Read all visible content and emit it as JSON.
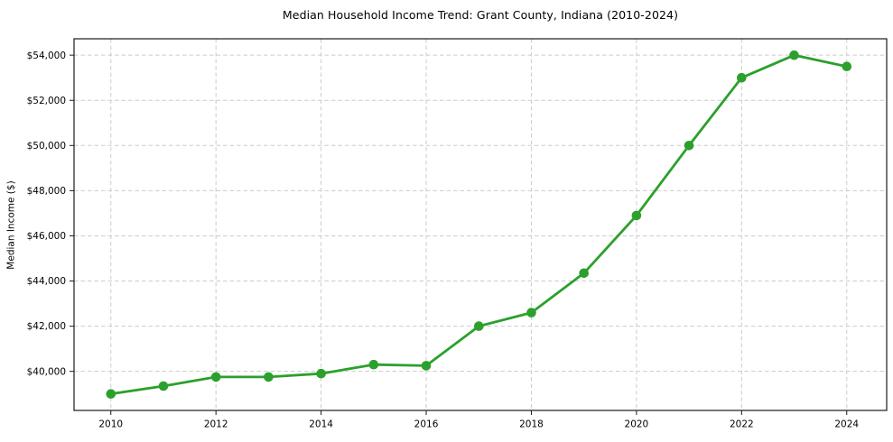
{
  "chart_data": {
    "type": "line",
    "title": "Median Household Income Trend: Grant County, Indiana (2010-2024)",
    "ylabel": "Median Income ($)",
    "x": [
      2010,
      2011,
      2012,
      2013,
      2014,
      2015,
      2016,
      2017,
      2018,
      2019,
      2020,
      2021,
      2022,
      2023,
      2024
    ],
    "values": [
      39000,
      39350,
      39750,
      39750,
      39900,
      40300,
      40250,
      42000,
      42600,
      44350,
      46900,
      50000,
      53000,
      54000,
      53500
    ],
    "x_ticks": [
      2010,
      2012,
      2014,
      2016,
      2018,
      2020,
      2022,
      2024
    ],
    "x_tick_labels": [
      "2010",
      "2012",
      "2014",
      "2016",
      "2018",
      "2020",
      "2022",
      "2024"
    ],
    "y_ticks": [
      40000,
      42000,
      44000,
      46000,
      48000,
      50000,
      52000,
      54000
    ],
    "y_tick_labels": [
      "$40,000",
      "$42,000",
      "$44,000",
      "$46,000",
      "$48,000",
      "$50,000",
      "$52,000",
      "$54,000"
    ],
    "xlim": [
      2009.3,
      2024.76
    ],
    "ylim": [
      38270,
      54725
    ],
    "grid": true,
    "grid_style": "dashed",
    "legend": false,
    "line_color": "#2ca02c",
    "marker": "circle",
    "marker_color": "#2ca02c",
    "grid_color": "#cccccc",
    "axis_color": "#1a1a1a"
  }
}
